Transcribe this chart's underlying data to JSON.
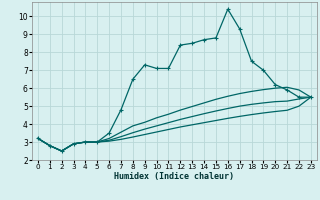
{
  "xlabel": "Humidex (Indice chaleur)",
  "bg_color": "#d8f0f0",
  "grid_color": "#b8d8d8",
  "line_color": "#006666",
  "xlim": [
    -0.5,
    23.5
  ],
  "ylim": [
    2.0,
    10.8
  ],
  "xticks": [
    0,
    1,
    2,
    3,
    4,
    5,
    6,
    7,
    8,
    9,
    10,
    11,
    12,
    13,
    14,
    15,
    16,
    17,
    18,
    19,
    20,
    21,
    22,
    23
  ],
  "yticks": [
    2,
    3,
    4,
    5,
    6,
    7,
    8,
    9,
    10
  ],
  "series1_x": [
    0,
    1,
    2,
    3,
    4,
    5,
    6,
    7,
    8,
    9,
    10,
    11,
    12,
    13,
    14,
    15,
    16,
    17,
    18,
    19,
    20,
    21,
    22,
    23
  ],
  "series1_y": [
    3.2,
    2.8,
    2.5,
    2.9,
    3.0,
    3.0,
    3.5,
    4.8,
    6.5,
    7.3,
    7.1,
    7.1,
    8.4,
    8.5,
    8.7,
    8.8,
    10.4,
    9.3,
    7.5,
    7.0,
    6.2,
    5.9,
    5.5,
    5.5
  ],
  "series2_x": [
    0,
    1,
    2,
    3,
    4,
    5,
    6,
    7,
    8,
    9,
    10,
    11,
    12,
    13,
    14,
    15,
    16,
    17,
    18,
    19,
    20,
    21,
    22,
    23
  ],
  "series2_y": [
    3.2,
    2.8,
    2.5,
    2.9,
    3.0,
    3.0,
    3.2,
    3.55,
    3.9,
    4.1,
    4.35,
    4.55,
    4.78,
    4.98,
    5.18,
    5.38,
    5.55,
    5.7,
    5.82,
    5.92,
    6.0,
    6.05,
    5.9,
    5.5
  ],
  "series3_x": [
    0,
    1,
    2,
    3,
    4,
    5,
    6,
    7,
    8,
    9,
    10,
    11,
    12,
    13,
    14,
    15,
    16,
    17,
    18,
    19,
    20,
    21,
    22,
    23
  ],
  "series3_y": [
    3.2,
    2.8,
    2.5,
    2.9,
    3.0,
    3.0,
    3.1,
    3.3,
    3.52,
    3.72,
    3.9,
    4.08,
    4.26,
    4.42,
    4.58,
    4.73,
    4.87,
    5.0,
    5.1,
    5.18,
    5.25,
    5.28,
    5.4,
    5.5
  ],
  "series4_x": [
    0,
    1,
    2,
    3,
    4,
    5,
    6,
    7,
    8,
    9,
    10,
    11,
    12,
    13,
    14,
    15,
    16,
    17,
    18,
    19,
    20,
    21,
    22,
    23
  ],
  "series4_y": [
    3.2,
    2.8,
    2.5,
    2.9,
    3.0,
    3.0,
    3.05,
    3.15,
    3.28,
    3.42,
    3.56,
    3.7,
    3.84,
    3.96,
    4.08,
    4.2,
    4.32,
    4.43,
    4.53,
    4.62,
    4.7,
    4.77,
    5.0,
    5.5
  ]
}
